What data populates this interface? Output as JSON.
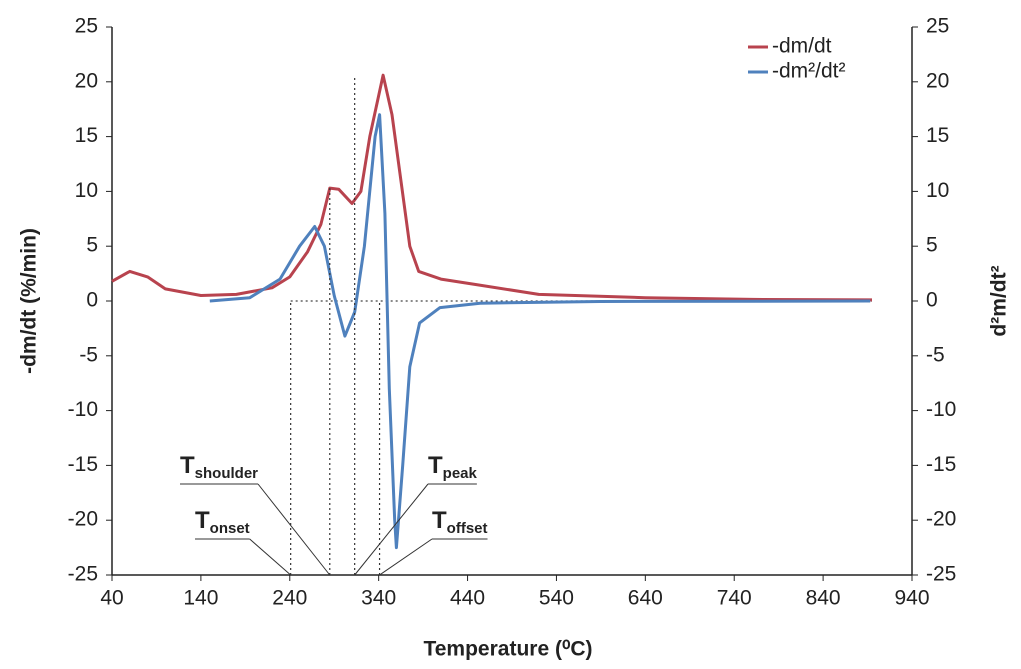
{
  "chart_data": {
    "type": "line",
    "x_label": "Temperature (⁰C)",
    "y_label": "-dm/dt (%/min)",
    "y2_label": "d²m/dt²",
    "xlim": [
      40,
      940
    ],
    "xticks": [
      40,
      140,
      240,
      340,
      440,
      540,
      640,
      740,
      840,
      940
    ],
    "ylim": [
      -25,
      25
    ],
    "yticks": [
      -25,
      -20,
      -15,
      -10,
      -5,
      0,
      5,
      10,
      15,
      20,
      25
    ],
    "y2lim": [
      -25,
      25
    ],
    "y2ticks": [
      -25,
      -20,
      -15,
      -10,
      -5,
      0,
      5,
      10,
      15,
      20,
      25
    ],
    "legend": "upper right",
    "series": [
      {
        "name": "-dm/dt",
        "color": "#b8434e",
        "x": [
          40,
          60,
          80,
          100,
          140,
          180,
          220,
          240,
          260,
          275,
          285,
          295,
          310,
          320,
          330,
          345,
          355,
          365,
          375,
          385,
          410,
          450,
          520,
          640,
          760,
          895
        ],
        "values": [
          1.8,
          2.7,
          2.2,
          1.1,
          0.5,
          0.6,
          1.2,
          2.2,
          4.5,
          7,
          10.3,
          10.2,
          8.9,
          10,
          15,
          20.6,
          17,
          11,
          5,
          2.7,
          2,
          1.5,
          0.6,
          0.3,
          0.15,
          0.1
        ]
      },
      {
        "name": "-dm²/dt²",
        "color": "#4f81bd",
        "axis": "y2",
        "x": [
          150,
          195,
          229,
          251,
          268,
          279,
          290,
          302,
          313,
          324,
          336,
          341,
          347,
          352,
          358,
          360,
          367,
          375,
          386,
          409,
          454,
          589,
          893
        ],
        "values": [
          0,
          0.3,
          2,
          5,
          6.8,
          5,
          0.5,
          -3.2,
          -1,
          5,
          15,
          17,
          8,
          -8,
          -20,
          -22.5,
          -15,
          -6,
          -2,
          -0.6,
          -0.2,
          -0.05,
          0
        ]
      }
    ],
    "annotations": [
      {
        "label": "T",
        "subscript": "onset",
        "x": 241
      },
      {
        "label": "T",
        "subscript": "shoulder",
        "x": 285
      },
      {
        "label": "T",
        "subscript": "peak",
        "x": 313
      },
      {
        "label": "T",
        "subscript": "offset",
        "x": 341
      }
    ]
  }
}
